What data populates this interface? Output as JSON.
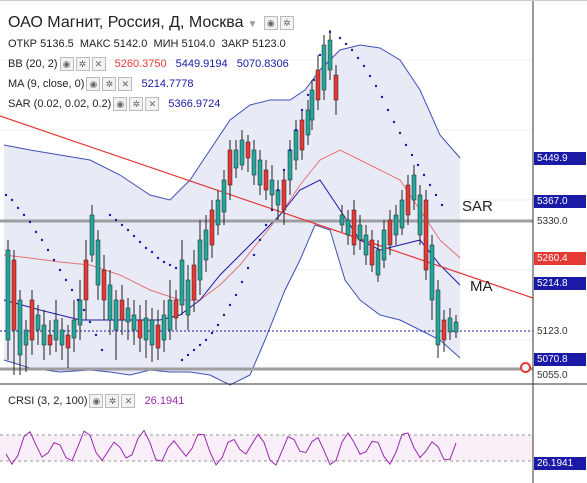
{
  "header": {
    "title": "ОАО Магнит, Россия, Д, Москва",
    "ohlc": [
      {
        "label": "ОТКР",
        "value": "5136.5"
      },
      {
        "label": "МАКС",
        "value": "5142.0"
      },
      {
        "label": "МИН",
        "value": "5104.0"
      },
      {
        "label": "ЗАКР",
        "value": "5123.0"
      }
    ]
  },
  "indicators": {
    "bb": {
      "label": "BB (20, 2)",
      "values": [
        "5260.3750",
        "5449.9194",
        "5070.8306"
      ],
      "colors": [
        "#e53935",
        "#1a1aa6",
        "#1a1aa6"
      ]
    },
    "ma": {
      "label": "MA (9, close, 0)",
      "value": "5214.7778",
      "color": "#1a1aa6"
    },
    "sar": {
      "label": "SAR (0.02, 0.02, 0.2)",
      "value": "5366.9724",
      "color": "#1a1aa6"
    }
  },
  "annotations": {
    "sar": "SAR",
    "ma": "MA"
  },
  "price_scale": {
    "ticks": [
      "5449.9",
      "5367.0",
      "5330.0",
      "5260.4",
      "5214.8",
      "5123.0",
      "5070.8",
      "5055.0"
    ],
    "boxes": [
      {
        "value": "5449.9",
        "bg": "#1a1aa6",
        "fg": "#ffffff"
      },
      {
        "value": "5367.0",
        "bg": "#1a1aa6",
        "fg": "#ffffff"
      },
      {
        "value": "5330.0",
        "bg": "#ffffff",
        "fg": "#333333"
      },
      {
        "value": "5260.4",
        "bg": "#e53935",
        "fg": "#ffffff"
      },
      {
        "value": "5214.8",
        "bg": "#1a1aa6",
        "fg": "#ffffff"
      },
      {
        "value": "5123.0",
        "bg": "#ffffff",
        "fg": "#333333"
      },
      {
        "value": "5070.8",
        "bg": "#1a1aa6",
        "fg": "#ffffff"
      },
      {
        "value": "5055.0",
        "bg": "#ffffff",
        "fg": "#333333"
      }
    ]
  },
  "rsi": {
    "label": "CRSI (3, 2, 100)",
    "value": "26.1941",
    "color": "#9c27b0"
  },
  "colors": {
    "up": "#26a69a",
    "down": "#e53935",
    "band_fill": "#e6e8f5",
    "band_line": "#3f51b5",
    "trend": "#e53935",
    "level": "#9e9e9e"
  },
  "icons": [
    "eye-icon",
    "gear-icon",
    "close-icon",
    "chevron-down-icon"
  ]
}
